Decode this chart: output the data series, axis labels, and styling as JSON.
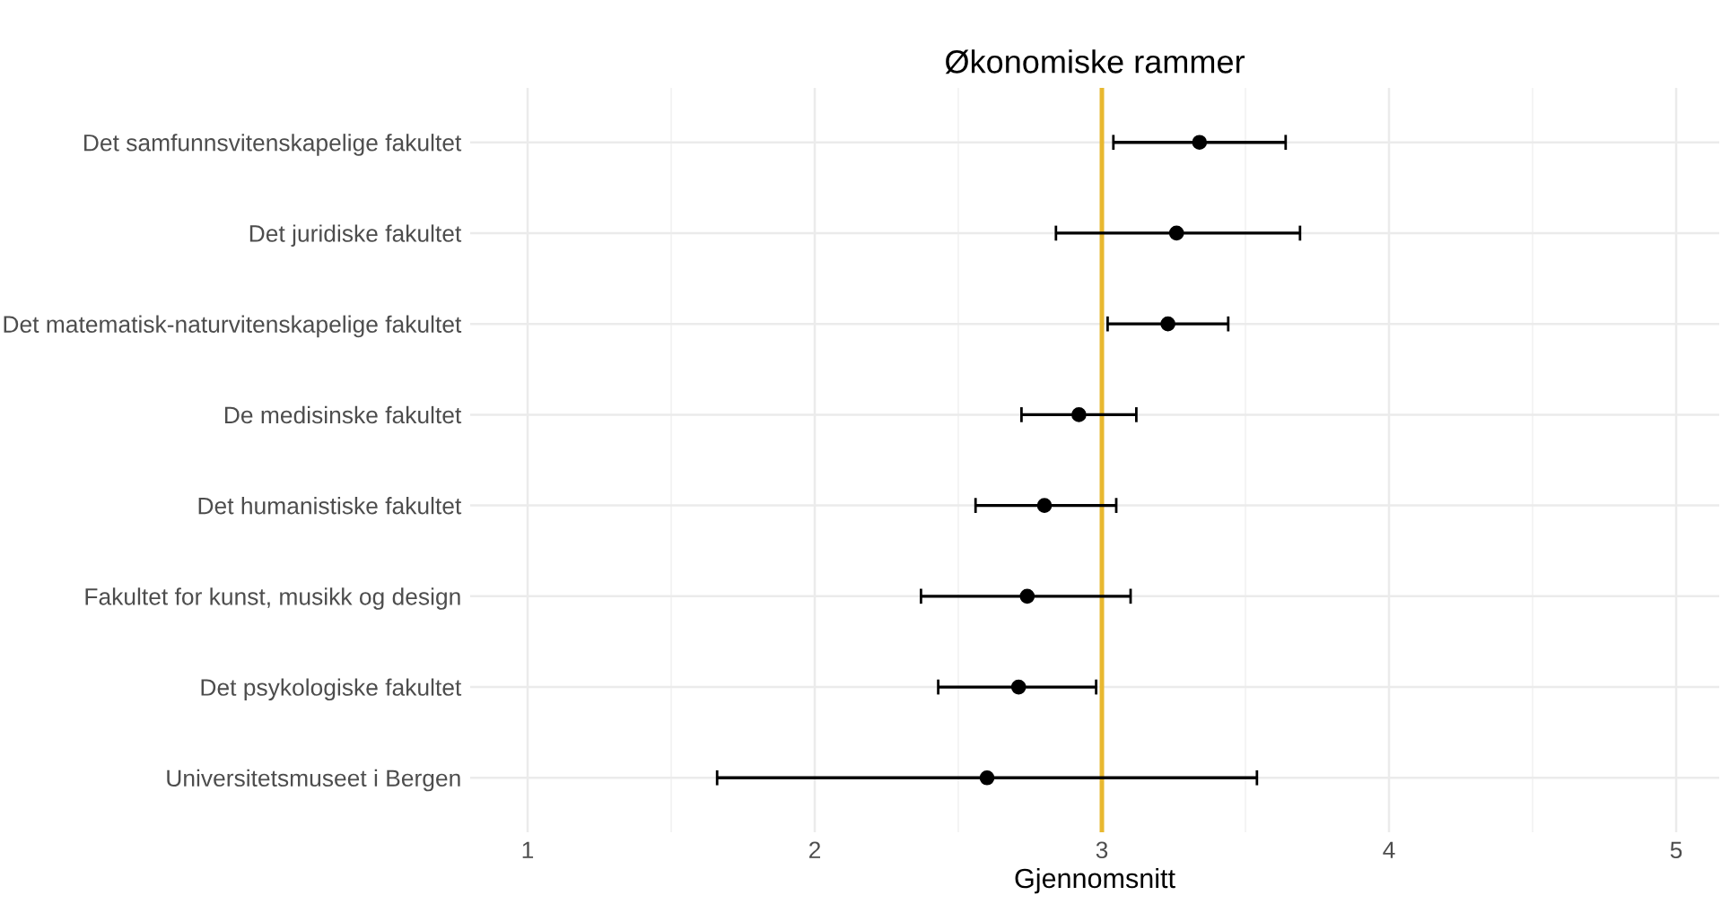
{
  "chart_data": {
    "type": "scatter",
    "orientation": "horizontal",
    "title": "Økonomiske rammer",
    "xlabel": "Gjennomsnitt",
    "categories": [
      "Det samfunnsvitenskapelige fakultet",
      "Det juridiske fakultet",
      "Det matematisk-naturvitenskapelige fakultet",
      "De medisinske fakultet",
      "Det humanistiske fakultet",
      "Fakultet for kunst, musikk og design",
      "Det psykologiske fakultet",
      "Universitetsmuseet i Bergen"
    ],
    "values": [
      3.34,
      3.26,
      3.23,
      2.92,
      2.8,
      2.74,
      2.71,
      2.6
    ],
    "errors": [
      [
        3.04,
        3.64
      ],
      [
        2.84,
        3.69
      ],
      [
        3.02,
        3.44
      ],
      [
        2.72,
        3.12
      ],
      [
        2.56,
        3.05
      ],
      [
        2.37,
        3.1
      ],
      [
        2.43,
        2.98
      ],
      [
        1.66,
        3.54
      ]
    ],
    "color": "#000000",
    "marker": "circle",
    "xlim": [
      0.8,
      5.15
    ],
    "xticks": [
      1,
      2,
      3,
      4,
      5
    ],
    "grid": true,
    "ref_lines": [
      {
        "axis": "x",
        "value": 3,
        "color": "#e8b830"
      }
    ]
  }
}
